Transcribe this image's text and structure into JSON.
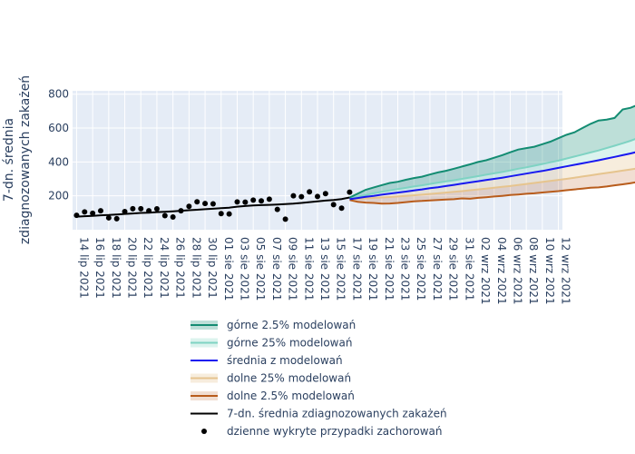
{
  "chart_data": {
    "type": "line",
    "ylabel_lines": [
      "7-dn. średnia",
      "zdiagnozowanych zakażeń"
    ],
    "ylim": [
      0,
      820
    ],
    "yticks": [
      200,
      400,
      600,
      800
    ],
    "grid": true,
    "legend_position": "bottom",
    "plot_background": "#e5ecf6",
    "x_dates_start": "2021-07-14",
    "x_range_days": [
      -0.5,
      60.5
    ],
    "x_ticks": [
      "14 lip 2021",
      "16 lip 2021",
      "18 lip 2021",
      "20 lip 2021",
      "22 lip 2021",
      "24 lip 2021",
      "26 lip 2021",
      "28 lip 2021",
      "30 lip 2021",
      "01 sie 2021",
      "03 sie 2021",
      "05 sie 2021",
      "07 sie 2021",
      "09 sie 2021",
      "11 sie 2021",
      "13 sie 2021",
      "15 sie 2021",
      "17 sie 2021",
      "19 sie 2021",
      "21 sie 2021",
      "23 sie 2021",
      "25 sie 2021",
      "27 sie 2021",
      "29 sie 2021",
      "31 sie 2021",
      "02 wrz 2021",
      "04 wrz 2021",
      "06 wrz 2021",
      "08 wrz 2021",
      "10 wrz 2021",
      "12 wrz 2021"
    ],
    "observed": {
      "daily_cases": {
        "name": "dzienne wykryte przypadki zachorowań",
        "color": "#000000",
        "start": "2021-07-14",
        "values": [
          85,
          105,
          97,
          112,
          70,
          65,
          107,
          124,
          124,
          112,
          123,
          83,
          75,
          112,
          138,
          165,
          155,
          153,
          95,
          93,
          164,
          163,
          175,
          170,
          180,
          120,
          62,
          200,
          195,
          224,
          196,
          213,
          148,
          127,
          222
        ]
      },
      "rolling_avg": {
        "name": "7-dn. średnia zdiagnozowanych zakażeń",
        "color": "#000000",
        "start": "2021-07-14",
        "values": [
          77,
          80,
          82,
          85,
          87,
          90,
          93,
          96,
          99,
          101,
          104,
          106,
          109,
          112,
          115,
          118,
          121,
          124,
          127,
          130,
          136,
          140,
          143,
          145,
          147,
          149,
          151,
          154,
          158,
          163,
          167,
          172,
          176,
          181,
          190
        ]
      }
    },
    "forecast": {
      "start": "2021-08-17",
      "upper_2_5": {
        "name": "górne 2.5% modelowań",
        "color": "#138c72",
        "fill": "rgba(19,140,114,0.28)",
        "values": [
          190,
          213,
          236,
          250,
          263,
          276,
          283,
          295,
          305,
          313,
          326,
          338,
          348,
          360,
          373,
          386,
          400,
          410,
          425,
          440,
          457,
          473,
          482,
          490,
          505,
          520,
          540,
          560,
          575,
          600,
          625,
          645,
          650,
          660,
          710,
          720,
          740,
          760,
          775
        ]
      },
      "upper_25": {
        "name": "górne 25% modelowań",
        "color": "#7fd3c3",
        "fill": "rgba(127,211,195,0.28)",
        "values": [
          185,
          195,
          205,
          215,
          224,
          232,
          240,
          247,
          255,
          262,
          270,
          278,
          285,
          292,
          300,
          308,
          316,
          325,
          333,
          341,
          350,
          360,
          368,
          378,
          388,
          398,
          408,
          420,
          432,
          444,
          456,
          468,
          482,
          496,
          510,
          525,
          543,
          565,
          598
        ]
      },
      "mean": {
        "name": "średnia z modelowań",
        "color": "#1818f0",
        "values": [
          180,
          187,
          194,
          200,
          207,
          213,
          219,
          225,
          232,
          238,
          245,
          251,
          258,
          265,
          272,
          279,
          286,
          293,
          300,
          307,
          315,
          323,
          331,
          339,
          347,
          356,
          365,
          374,
          383,
          392,
          401,
          410,
          420,
          430,
          440,
          450,
          462,
          478,
          495
        ]
      },
      "lower_25": {
        "name": "dolne 25% modelowań",
        "color": "#e6c48e",
        "fill": "rgba(230,196,142,0.30)",
        "values": [
          180,
          183,
          185,
          188,
          190,
          193,
          196,
          200,
          203,
          207,
          211,
          215,
          219,
          224,
          228,
          233,
          238,
          243,
          248,
          253,
          258,
          264,
          270,
          276,
          282,
          288,
          294,
          300,
          307,
          314,
          321,
          328,
          335,
          342,
          349,
          356,
          363,
          370,
          380
        ]
      },
      "lower_2_5": {
        "name": "dolne 2.5% modelowań",
        "color": "#b85c1c",
        "fill": "rgba(184,92,28,0.20)",
        "values": [
          175,
          165,
          160,
          158,
          154,
          155,
          158,
          163,
          168,
          170,
          173,
          176,
          178,
          180,
          185,
          183,
          188,
          192,
          196,
          200,
          205,
          208,
          212,
          215,
          220,
          224,
          228,
          233,
          238,
          243,
          248,
          250,
          255,
          262,
          268,
          275,
          283,
          292,
          300
        ]
      }
    },
    "legend": [
      {
        "key": "upper_2_5",
        "label": "górne 2.5% modelowań"
      },
      {
        "key": "upper_25",
        "label": "górne 25% modelowań"
      },
      {
        "key": "mean",
        "label": "średnia z modelowań"
      },
      {
        "key": "lower_25",
        "label": "dolne 25% modelowań"
      },
      {
        "key": "lower_2_5",
        "label": "dolne 2.5% modelowań"
      },
      {
        "key": "rolling_avg",
        "label": "7-dn. średnia zdiagnozowanych zakażeń"
      },
      {
        "key": "daily_cases",
        "label": "dzienne wykryte przypadki zachorowań"
      }
    ]
  }
}
